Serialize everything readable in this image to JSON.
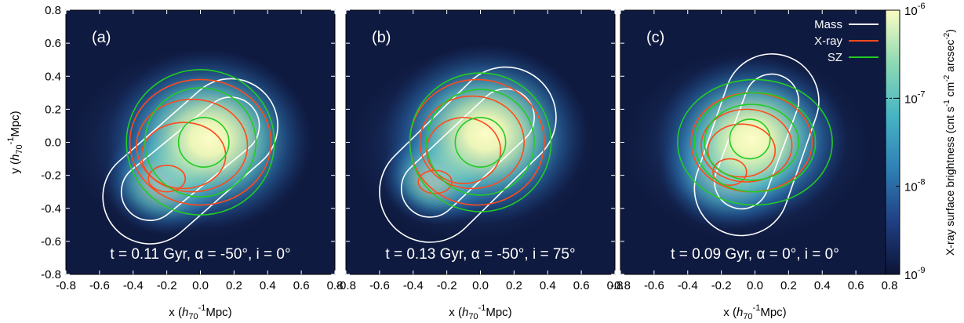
{
  "chart_data": {
    "type": "heatmap",
    "description_note": "",
    "panels": [
      {
        "label": "(a)",
        "caption": "t = 0.11 Gyr, α = -50°, i = 0°",
        "sources": [
          {
            "x": -0.2,
            "y": -0.22,
            "a": 0.2
          },
          {
            "x": 0.05,
            "y": 0.02,
            "a": 0.32
          }
        ],
        "contours": {
          "Mass": [
            {
              "type": "band",
              "x1": -0.3,
              "y1": -0.33,
              "x2": 0.18,
              "y2": 0.1,
              "w": 0.56
            },
            {
              "type": "band",
              "x1": -0.3,
              "y1": -0.3,
              "x2": 0.18,
              "y2": 0.1,
              "w": 0.34
            }
          ],
          "X-ray": [
            {
              "type": "ellipse",
              "cx": 0.0,
              "cy": 0.0,
              "rx": 0.42,
              "ry": 0.38
            },
            {
              "type": "ellipse",
              "cx": -0.05,
              "cy": -0.02,
              "rx": 0.33,
              "ry": 0.28
            },
            {
              "type": "ellipse",
              "cx": -0.1,
              "cy": -0.08,
              "rx": 0.25,
              "ry": 0.2
            },
            {
              "type": "ellipse",
              "cx": -0.2,
              "cy": -0.22,
              "rx": 0.11,
              "ry": 0.08
            }
          ],
          "SZ": [
            {
              "type": "circle",
              "cx": 0.0,
              "cy": 0.0,
              "r": 0.44
            },
            {
              "type": "circle",
              "cx": 0.0,
              "cy": 0.0,
              "r": 0.33
            },
            {
              "type": "circle",
              "cx": 0.02,
              "cy": 0.0,
              "r": 0.15
            }
          ]
        }
      },
      {
        "label": "(b)",
        "caption": "t = 0.13 Gyr, α = -50°, i = 75°",
        "sources": [
          {
            "x": -0.25,
            "y": -0.2,
            "a": 0.18
          },
          {
            "x": 0.03,
            "y": 0.05,
            "a": 0.32
          }
        ],
        "contours": {
          "Mass": [
            {
              "type": "band",
              "x1": -0.3,
              "y1": -0.3,
              "x2": 0.15,
              "y2": 0.15,
              "w": 0.6
            },
            {
              "type": "band",
              "x1": -0.3,
              "y1": -0.28,
              "x2": 0.15,
              "y2": 0.15,
              "w": 0.34
            }
          ],
          "X-ray": [
            {
              "type": "ellipse",
              "cx": -0.02,
              "cy": 0.0,
              "rx": 0.4,
              "ry": 0.38
            },
            {
              "type": "ellipse",
              "cx": -0.05,
              "cy": 0.0,
              "rx": 0.31,
              "ry": 0.28
            },
            {
              "type": "ellipse",
              "cx": -0.1,
              "cy": -0.05,
              "rx": 0.22,
              "ry": 0.2
            },
            {
              "type": "ellipse",
              "cx": -0.27,
              "cy": -0.24,
              "rx": 0.1,
              "ry": 0.07
            }
          ],
          "SZ": [
            {
              "type": "circle",
              "cx": 0.0,
              "cy": 0.0,
              "r": 0.42
            },
            {
              "type": "circle",
              "cx": 0.0,
              "cy": 0.0,
              "r": 0.32
            },
            {
              "type": "circle",
              "cx": 0.0,
              "cy": 0.0,
              "r": 0.15
            }
          ]
        }
      },
      {
        "label": "(c)",
        "caption": "t = 0.09 Gyr, α = 0°, i = 0°",
        "sources": [
          {
            "x": -0.15,
            "y": -0.16,
            "a": 0.22
          },
          {
            "x": -0.02,
            "y": 0.02,
            "a": 0.3
          }
        ],
        "contours": {
          "Mass": [
            {
              "type": "band",
              "x1": -0.08,
              "y1": -0.28,
              "x2": 0.1,
              "y2": 0.25,
              "w": 0.56
            },
            {
              "type": "band",
              "x1": -0.08,
              "y1": -0.24,
              "x2": 0.1,
              "y2": 0.25,
              "w": 0.32
            }
          ],
          "X-ray": [
            {
              "type": "ellipse",
              "cx": -0.02,
              "cy": 0.0,
              "rx": 0.36,
              "ry": 0.3
            },
            {
              "type": "ellipse",
              "cx": -0.05,
              "cy": -0.02,
              "rx": 0.27,
              "ry": 0.22
            },
            {
              "type": "ellipse",
              "cx": -0.08,
              "cy": -0.05,
              "rx": 0.2,
              "ry": 0.16
            },
            {
              "type": "ellipse",
              "cx": -0.15,
              "cy": -0.18,
              "rx": 0.1,
              "ry": 0.08
            }
          ],
          "SZ": [
            {
              "type": "ellipse",
              "cx": 0.0,
              "cy": 0.0,
              "rx": 0.46,
              "ry": 0.38
            },
            {
              "type": "ellipse",
              "cx": 0.0,
              "cy": 0.0,
              "rx": 0.36,
              "ry": 0.3
            },
            {
              "type": "ellipse",
              "cx": -0.02,
              "cy": 0.0,
              "rx": 0.28,
              "ry": 0.23
            },
            {
              "type": "circle",
              "cx": -0.03,
              "cy": 0.02,
              "r": 0.12
            }
          ]
        }
      }
    ],
    "xlim": [
      -0.8,
      0.8
    ],
    "ylim": [
      -0.8,
      0.8
    ],
    "xticks": [
      "-0.8",
      "-0.6",
      "-0.4",
      "-0.2",
      "0.0",
      "0.2",
      "0.4",
      "0.6",
      "0.8"
    ],
    "yticks": [
      "0.8",
      "0.6",
      "0.4",
      "0.2",
      "0.0",
      "-0.2",
      "-0.4",
      "-0.6",
      "-0.8"
    ],
    "xlabel": {
      "pre": "x (",
      "h": "h",
      "hsub": "70",
      "hsup": "-1",
      "post": "Mpc)"
    },
    "ylabel": {
      "pre": "y (",
      "h": "h",
      "hsub": "70",
      "hsup": "-1",
      "post": "Mpc)"
    },
    "legend": {
      "position": "top-right",
      "entries": [
        {
          "name": "Mass",
          "color": "#ffffff"
        },
        {
          "name": "X-ray",
          "color": "#ff4a1c"
        },
        {
          "name": "SZ",
          "color": "#22cc22"
        }
      ]
    },
    "colorbar": {
      "scale": "log",
      "range": [
        1e-09,
        1e-06
      ],
      "ticks": [
        {
          "base": "10",
          "exp": "-6",
          "value": 1e-06
        },
        {
          "base": "10",
          "exp": "-7",
          "value": 1e-07
        },
        {
          "base": "10",
          "exp": "-8",
          "value": 1e-08
        },
        {
          "base": "10",
          "exp": "-9",
          "value": 1e-09
        }
      ],
      "marker_value": 1e-07,
      "label": {
        "text1": "X-ray surface brightness (cnt s",
        "sup1": "-1",
        "text2": " cm",
        "sup2": "-2",
        "text3": " arcsec",
        "sup3": "-2",
        "text4": ")"
      },
      "colors": [
        "#0d1436",
        "#1f3f84",
        "#2f80b6",
        "#46b4c4",
        "#8ed9b4",
        "#fcfdc4"
      ]
    }
  }
}
